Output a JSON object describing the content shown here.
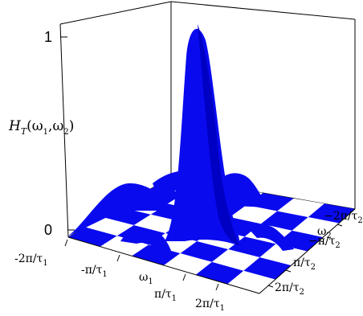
{
  "colors": {
    "surface": "#0a0aef",
    "surface_dark": "#0000b8",
    "check_light": "#ffffff",
    "axes": "#000000"
  },
  "z_axis": {
    "label": {
      "main": "H",
      "sub_T": "T",
      "args": "(ω",
      "sub1": "1",
      "comma": ",ω",
      "sub2": "2",
      "close": ")"
    },
    "ticks": [
      {
        "label": "1"
      },
      {
        "label": "0"
      }
    ]
  },
  "omega1_axis": {
    "name_main": "ω",
    "name_sub": "1",
    "ticks": [
      {
        "num": "-2π/τ",
        "sub": "1"
      },
      {
        "num": "-π/τ",
        "sub": "1"
      },
      {
        "num": "π/τ",
        "sub": "1"
      },
      {
        "num": "2π/τ",
        "sub": "1"
      }
    ]
  },
  "omega2_axis": {
    "name_main": "ω",
    "name_sub": "2",
    "ticks": [
      {
        "num": "−2π/τ",
        "sub": "2"
      },
      {
        "num": "−π/τ",
        "sub": "2"
      },
      {
        "num": "π/τ",
        "sub": "2"
      },
      {
        "num": "2π/τ",
        "sub": "2"
      }
    ]
  },
  "surface": {
    "peak_height": 1,
    "base_height": 0
  }
}
